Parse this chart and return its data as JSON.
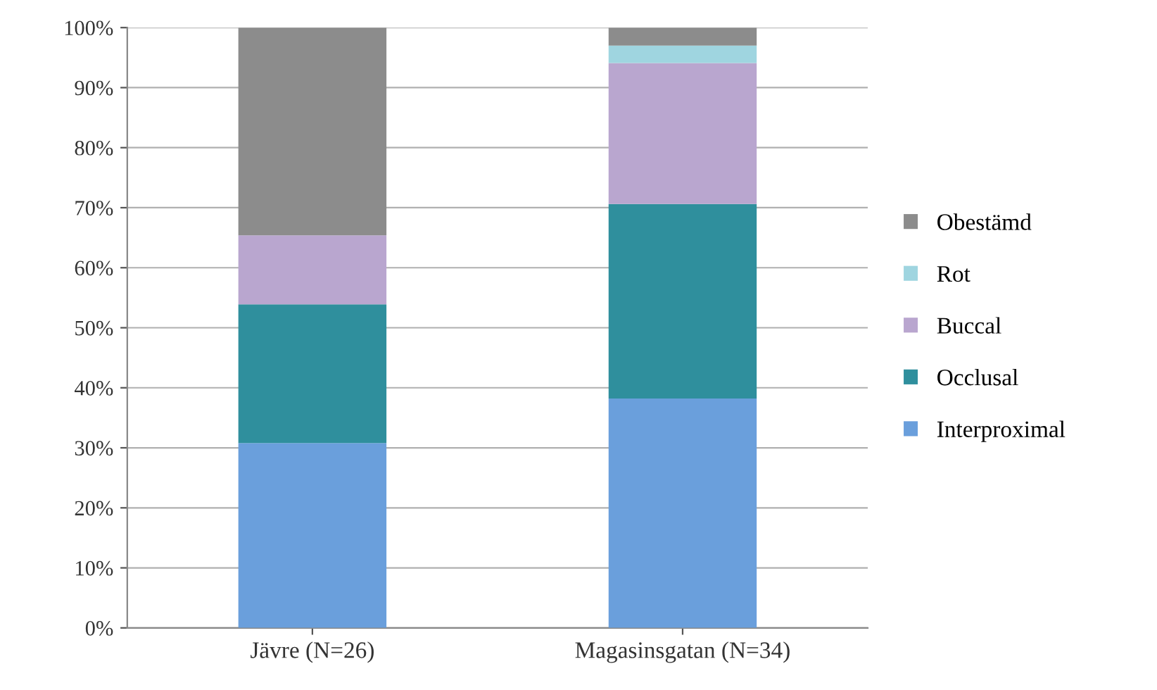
{
  "chart_data": {
    "type": "bar",
    "stacked": true,
    "categories": [
      "Jävre (N=26)",
      "Magasinsgatan (N=34)"
    ],
    "series": [
      {
        "name": "Interproximal",
        "color": "#6a9fdc",
        "values": [
          30.8,
          38.2
        ]
      },
      {
        "name": "Occlusal",
        "color": "#2f8f9d",
        "values": [
          23.1,
          32.4
        ]
      },
      {
        "name": "Buccal",
        "color": "#b9a6cf",
        "values": [
          11.5,
          23.5
        ]
      },
      {
        "name": "Rot",
        "color": "#9fd5e0",
        "values": [
          0,
          2.9
        ]
      },
      {
        "name": "Obestämd",
        "color": "#8c8c8c",
        "values": [
          34.6,
          3.0
        ]
      }
    ],
    "ylim": [
      0,
      100
    ],
    "yticks": [
      {
        "value": 0,
        "label": "0%"
      },
      {
        "value": 10,
        "label": "10%"
      },
      {
        "value": 20,
        "label": "20%"
      },
      {
        "value": 30,
        "label": "30%"
      },
      {
        "value": 40,
        "label": "40%"
      },
      {
        "value": 50,
        "label": "50%"
      },
      {
        "value": 60,
        "label": "60%"
      },
      {
        "value": 70,
        "label": "70%"
      },
      {
        "value": 80,
        "label": "80%"
      },
      {
        "value": 90,
        "label": "90%"
      },
      {
        "value": 100,
        "label": "100%"
      }
    ],
    "grid": "y",
    "legend": "right"
  }
}
